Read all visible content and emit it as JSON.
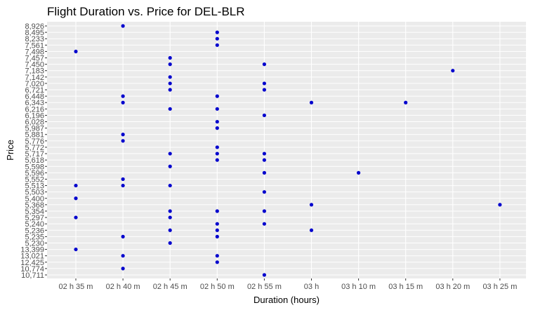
{
  "chart_data": {
    "type": "scatter",
    "title": "Flight Duration vs. Price for DEL-BLR",
    "xlabel": "Duration (hours)",
    "ylabel": "Price",
    "x_categories": [
      "02 h 35 m",
      "02 h 40 m",
      "02 h 45 m",
      "02 h 50 m",
      "02 h 55 m",
      "03 h",
      "03 h 10 m",
      "03 h 15 m",
      "03 h 20 m",
      "03 h 25 m"
    ],
    "y_categories": [
      "8,926",
      "8,495",
      "8,233",
      "7,561",
      "7,498",
      "7,457",
      "7,450",
      "7,183",
      "7,142",
      "7,020",
      "6,721",
      "6,448",
      "6,343",
      "6,216",
      "6,196",
      "6,028",
      "5,987",
      "5,881",
      "5,776",
      "5,772",
      "5,717",
      "5,618",
      "5,598",
      "5,596",
      "5,552",
      "5,513",
      "5,503",
      "5,400",
      "5,368",
      "5,354",
      "5,297",
      "5,240",
      "5,236",
      "5,235",
      "5,230",
      "13,399",
      "13,021",
      "12,425",
      "10,774",
      "10,711"
    ],
    "points": [
      {
        "x": "02 h 40 m",
        "y": "8,926"
      },
      {
        "x": "02 h 50 m",
        "y": "8,495"
      },
      {
        "x": "02 h 50 m",
        "y": "8,233"
      },
      {
        "x": "02 h 50 m",
        "y": "7,561"
      },
      {
        "x": "02 h 35 m",
        "y": "7,498"
      },
      {
        "x": "02 h 45 m",
        "y": "7,457"
      },
      {
        "x": "02 h 45 m",
        "y": "7,450"
      },
      {
        "x": "02 h 55 m",
        "y": "7,450"
      },
      {
        "x": "03 h 20 m",
        "y": "7,183"
      },
      {
        "x": "02 h 45 m",
        "y": "7,142"
      },
      {
        "x": "02 h 45 m",
        "y": "7,020"
      },
      {
        "x": "02 h 55 m",
        "y": "7,020"
      },
      {
        "x": "02 h 45 m",
        "y": "6,721"
      },
      {
        "x": "02 h 55 m",
        "y": "6,721"
      },
      {
        "x": "02 h 40 m",
        "y": "6,448"
      },
      {
        "x": "02 h 50 m",
        "y": "6,448"
      },
      {
        "x": "02 h 40 m",
        "y": "6,343"
      },
      {
        "x": "03 h",
        "y": "6,343"
      },
      {
        "x": "03 h 15 m",
        "y": "6,343"
      },
      {
        "x": "02 h 45 m",
        "y": "6,216"
      },
      {
        "x": "02 h 50 m",
        "y": "6,216"
      },
      {
        "x": "02 h 55 m",
        "y": "6,196"
      },
      {
        "x": "02 h 50 m",
        "y": "6,028"
      },
      {
        "x": "02 h 50 m",
        "y": "5,987"
      },
      {
        "x": "02 h 40 m",
        "y": "5,881"
      },
      {
        "x": "02 h 40 m",
        "y": "5,776"
      },
      {
        "x": "02 h 50 m",
        "y": "5,772"
      },
      {
        "x": "02 h 45 m",
        "y": "5,717"
      },
      {
        "x": "02 h 50 m",
        "y": "5,717"
      },
      {
        "x": "02 h 55 m",
        "y": "5,717"
      },
      {
        "x": "02 h 50 m",
        "y": "5,618"
      },
      {
        "x": "02 h 55 m",
        "y": "5,618"
      },
      {
        "x": "02 h 45 m",
        "y": "5,598"
      },
      {
        "x": "02 h 55 m",
        "y": "5,596"
      },
      {
        "x": "03 h 10 m",
        "y": "5,596"
      },
      {
        "x": "02 h 40 m",
        "y": "5,552"
      },
      {
        "x": "02 h 35 m",
        "y": "5,513"
      },
      {
        "x": "02 h 40 m",
        "y": "5,513"
      },
      {
        "x": "02 h 45 m",
        "y": "5,513"
      },
      {
        "x": "02 h 55 m",
        "y": "5,503"
      },
      {
        "x": "02 h 35 m",
        "y": "5,400"
      },
      {
        "x": "03 h",
        "y": "5,368"
      },
      {
        "x": "03 h 25 m",
        "y": "5,368"
      },
      {
        "x": "02 h 45 m",
        "y": "5,354"
      },
      {
        "x": "02 h 50 m",
        "y": "5,354"
      },
      {
        "x": "02 h 55 m",
        "y": "5,354"
      },
      {
        "x": "02 h 35 m",
        "y": "5,297"
      },
      {
        "x": "02 h 45 m",
        "y": "5,297"
      },
      {
        "x": "02 h 50 m",
        "y": "5,240"
      },
      {
        "x": "02 h 55 m",
        "y": "5,240"
      },
      {
        "x": "02 h 45 m",
        "y": "5,236"
      },
      {
        "x": "02 h 50 m",
        "y": "5,236"
      },
      {
        "x": "03 h",
        "y": "5,236"
      },
      {
        "x": "02 h 40 m",
        "y": "5,235"
      },
      {
        "x": "02 h 50 m",
        "y": "5,235"
      },
      {
        "x": "02 h 45 m",
        "y": "5,230"
      },
      {
        "x": "02 h 35 m",
        "y": "13,399"
      },
      {
        "x": "02 h 40 m",
        "y": "13,021"
      },
      {
        "x": "02 h 50 m",
        "y": "13,021"
      },
      {
        "x": "02 h 50 m",
        "y": "12,425"
      },
      {
        "x": "02 h 40 m",
        "y": "10,774"
      },
      {
        "x": "02 h 55 m",
        "y": "10,711"
      }
    ],
    "grid": true,
    "legend": "none",
    "colors": {
      "point": "#0000cd",
      "panel": "#ebebeb",
      "grid": "#ffffff"
    }
  }
}
